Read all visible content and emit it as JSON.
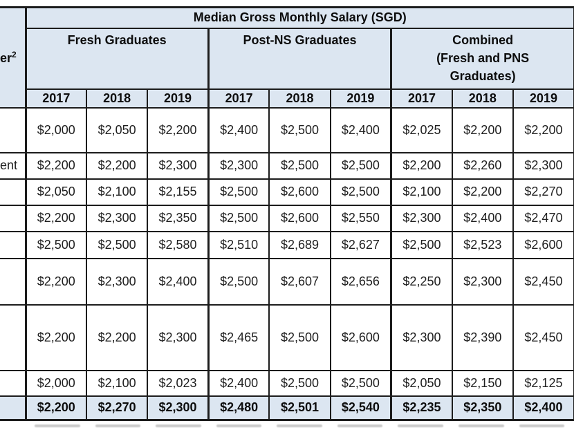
{
  "table": {
    "corner": {
      "visible_text": "er",
      "superscript": "2"
    },
    "title": "Median Gross Monthly Salary (SGD)",
    "groups": [
      {
        "label": "Fresh Graduates"
      },
      {
        "label": "Post-NS Graduates"
      },
      {
        "label": "Combined\n(Fresh and PNS\nGraduates)"
      }
    ],
    "year_headers": [
      "2017",
      "2018",
      "2019",
      "2017",
      "2018",
      "2019",
      "2017",
      "2018",
      "2019"
    ],
    "rows": [
      {
        "cells": [
          "",
          "$2,000",
          "$2,050",
          "$2,200",
          "$2,400",
          "$2,500",
          "$2,400",
          "$2,025",
          "$2,200",
          "$2,200"
        ]
      },
      {
        "cells": [
          "ent",
          "$2,200",
          "$2,200",
          "$2,300",
          "$2,300",
          "$2,500",
          "$2,500",
          "$2,200",
          "$2,260",
          "$2,300"
        ]
      },
      {
        "cells": [
          "",
          "$2,050",
          "$2,100",
          "$2,155",
          "$2,500",
          "$2,600",
          "$2,500",
          "$2,100",
          "$2,200",
          "$2,270"
        ]
      },
      {
        "cells": [
          "",
          "$2,200",
          "$2,300",
          "$2,350",
          "$2,500",
          "$2,600",
          "$2,550",
          "$2,300",
          "$2,400",
          "$2,470"
        ]
      },
      {
        "cells": [
          "",
          "$2,500",
          "$2,500",
          "$2,580",
          "$2,510",
          "$2,689",
          "$2,627",
          "$2,500",
          "$2,523",
          "$2,600"
        ]
      },
      {
        "cells": [
          "",
          "$2,200",
          "$2,300",
          "$2,400",
          "$2,500",
          "$2,607",
          "$2,656",
          "$2,250",
          "$2,300",
          "$2,450"
        ]
      },
      {
        "cells": [
          "",
          "$2,200",
          "$2,200",
          "$2,300",
          "$2,465",
          "$2,500",
          "$2,600",
          "$2,300",
          "$2,390",
          "$2,450"
        ]
      },
      {
        "cells": [
          "",
          "$2,000",
          "$2,100",
          "$2,023",
          "$2,400",
          "$2,500",
          "$2,500",
          "$2,050",
          "$2,150",
          "$2,125"
        ]
      },
      {
        "cells": [
          "",
          "$2,200",
          "$2,270",
          "$2,300",
          "$2,480",
          "$2,501",
          "$2,540",
          "$2,235",
          "$2,350",
          "$2,400"
        ]
      }
    ],
    "colors": {
      "header_fill": "#dce6f1",
      "border": "#1c1c1c",
      "text": "#1f1f1f"
    }
  },
  "chart_data": {
    "type": "table",
    "title": "Median Gross Monthly Salary (SGD)",
    "corner_header_visible": "er²",
    "column_groups": [
      "Fresh Graduates",
      "Post-NS Graduates",
      "Combined (Fresh and PNS Graduates)"
    ],
    "years": [
      "2017",
      "2018",
      "2019"
    ],
    "row_labels_visible": [
      "",
      "ent",
      "",
      "",
      "",
      "",
      "",
      "",
      ""
    ],
    "series": [
      {
        "name": "Fresh Graduates",
        "values": [
          [
            "$2,000",
            "$2,050",
            "$2,200"
          ],
          [
            "$2,200",
            "$2,200",
            "$2,300"
          ],
          [
            "$2,050",
            "$2,100",
            "$2,155"
          ],
          [
            "$2,200",
            "$2,300",
            "$2,350"
          ],
          [
            "$2,500",
            "$2,500",
            "$2,580"
          ],
          [
            "$2,200",
            "$2,300",
            "$2,400"
          ],
          [
            "$2,200",
            "$2,200",
            "$2,300"
          ],
          [
            "$2,000",
            "$2,100",
            "$2,023"
          ],
          [
            "$2,200",
            "$2,270",
            "$2,300"
          ]
        ]
      },
      {
        "name": "Post-NS Graduates",
        "values": [
          [
            "$2,400",
            "$2,500",
            "$2,400"
          ],
          [
            "$2,300",
            "$2,500",
            "$2,500"
          ],
          [
            "$2,500",
            "$2,600",
            "$2,500"
          ],
          [
            "$2,500",
            "$2,600",
            "$2,550"
          ],
          [
            "$2,510",
            "$2,689",
            "$2,627"
          ],
          [
            "$2,500",
            "$2,607",
            "$2,656"
          ],
          [
            "$2,465",
            "$2,500",
            "$2,600"
          ],
          [
            "$2,400",
            "$2,500",
            "$2,500"
          ],
          [
            "$2,480",
            "$2,501",
            "$2,540"
          ]
        ]
      },
      {
        "name": "Combined (Fresh and PNS Graduates)",
        "values": [
          [
            "$2,025",
            "$2,200",
            "$2,200"
          ],
          [
            "$2,200",
            "$2,260",
            "$2,300"
          ],
          [
            "$2,100",
            "$2,200",
            "$2,270"
          ],
          [
            "$2,300",
            "$2,400",
            "$2,470"
          ],
          [
            "$2,500",
            "$2,523",
            "$2,600"
          ],
          [
            "$2,250",
            "$2,300",
            "$2,450"
          ],
          [
            "$2,300",
            "$2,390",
            "$2,450"
          ],
          [
            "$2,050",
            "$2,150",
            "$2,125"
          ],
          [
            "$2,235",
            "$2,350",
            "$2,400"
          ]
        ]
      }
    ],
    "notes": "Last row is a bold shaded summary row; left label column is cropped at the image edge"
  }
}
